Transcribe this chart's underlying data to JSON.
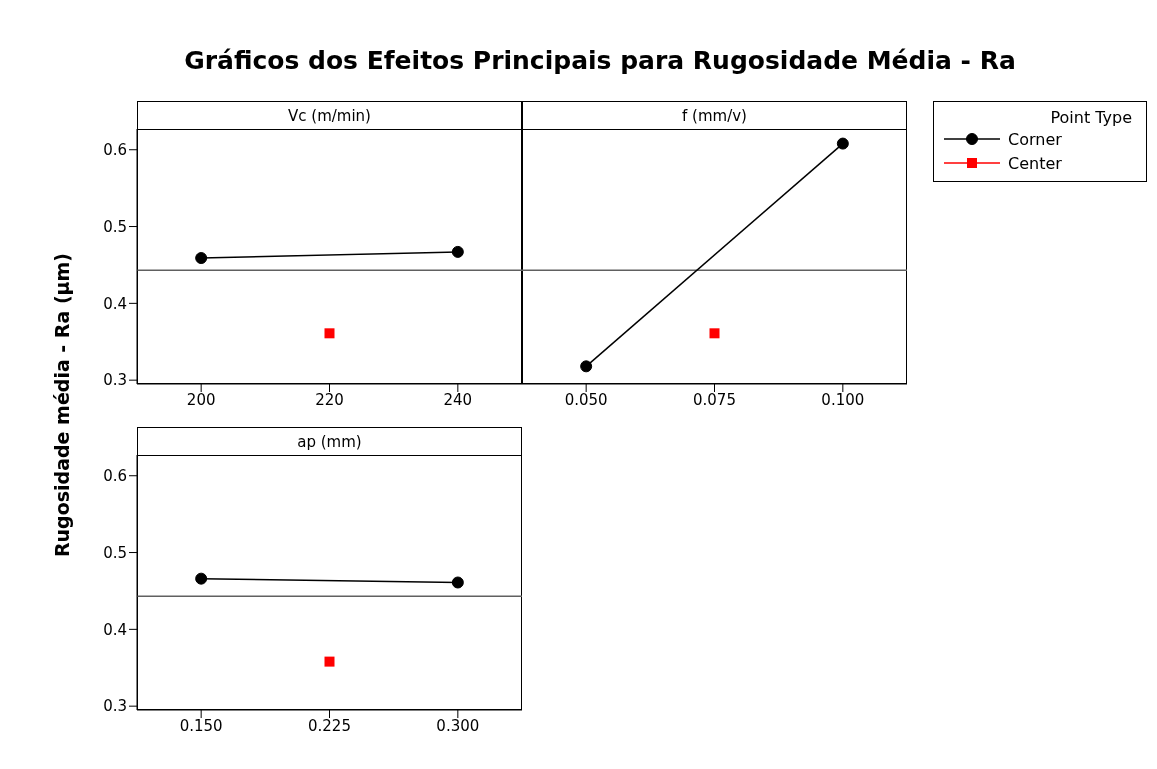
{
  "chart_data": [
    {
      "type": "line",
      "title": "Gráficos dos Efeitos Principais para Rugosidade Média - Ra",
      "ylabel": "Rugosidade média - Ra (µm)",
      "xlabel": "Vc (m/min)",
      "legend": "right",
      "legend_title": "Point Type",
      "xlim": [
        190,
        250
      ],
      "xticks": [
        200,
        220,
        240
      ],
      "ylim": [
        0.295,
        0.627
      ],
      "yticks": [
        {
          "value": 0.3,
          "label": "0.3"
        },
        {
          "value": 0.4,
          "label": "0.4"
        },
        {
          "value": 0.5,
          "label": "0.5"
        },
        {
          "value": 0.6,
          "label": "0.6"
        }
      ],
      "ref_lines": [
        {
          "axis": "y",
          "value": 0.443,
          "color": "#606060"
        }
      ],
      "series": [
        {
          "name": "Corner",
          "color": "#000000",
          "marker": "circle",
          "x": [
            200,
            240
          ],
          "values": [
            0.459,
            0.467
          ]
        },
        {
          "name": "Center",
          "type": "scatter",
          "color": "#ff0000",
          "marker": "square",
          "x": [
            220
          ],
          "values": [
            0.361
          ]
        }
      ]
    },
    {
      "type": "line",
      "xlabel": "f (mm/v)",
      "tick_labels": "x",
      "xlim": [
        0.0375,
        0.1125
      ],
      "xticks": [
        {
          "value": 0.05,
          "label": "0.050"
        },
        {
          "value": 0.075,
          "label": "0.075"
        },
        {
          "value": 0.1,
          "label": "0.100"
        }
      ],
      "ylim": [
        0.295,
        0.627
      ],
      "ref_lines": [
        {
          "axis": "y",
          "value": 0.443,
          "color": "#606060"
        }
      ],
      "series": [
        {
          "color": "#000000",
          "marker": "circle",
          "x": [
            0.05,
            0.1
          ],
          "values": [
            0.318,
            0.608
          ]
        },
        {
          "type": "scatter",
          "color": "#ff0000",
          "marker": "square",
          "x": [
            0.075
          ],
          "values": [
            0.361
          ]
        }
      ]
    },
    {
      "type": "line",
      "xlabel": "ap (mm)",
      "xlim": [
        0.1125,
        0.3375
      ],
      "xticks": [
        {
          "value": 0.15,
          "label": "0.150"
        },
        {
          "value": 0.225,
          "label": "0.225"
        },
        {
          "value": 0.3,
          "label": "0.300"
        }
      ],
      "ylim": [
        0.295,
        0.627
      ],
      "yticks": [
        {
          "value": 0.3,
          "label": "0.3"
        },
        {
          "value": 0.4,
          "label": "0.4"
        },
        {
          "value": 0.5,
          "label": "0.5"
        },
        {
          "value": 0.6,
          "label": "0.6"
        }
      ],
      "ref_lines": [
        {
          "axis": "y",
          "value": 0.443,
          "color": "#606060"
        }
      ],
      "series": [
        {
          "color": "#000000",
          "marker": "circle",
          "x": [
            0.15,
            0.3
          ],
          "values": [
            0.466,
            0.461
          ]
        },
        {
          "type": "scatter",
          "color": "#ff0000",
          "marker": "square",
          "x": [
            0.225
          ],
          "values": [
            0.358
          ]
        }
      ]
    }
  ]
}
